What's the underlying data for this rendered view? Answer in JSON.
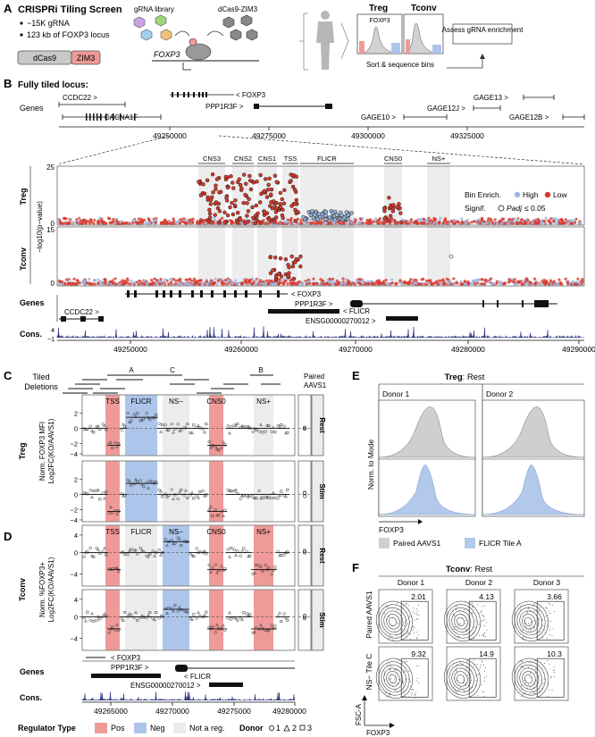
{
  "panelA": {
    "letter": "A",
    "title": "CRISPRi Tiling Screen",
    "bullets": [
      "~15K gRNA",
      "123 kb of FOXP3 locus"
    ],
    "dcas9": "dCas9",
    "zim3": "ZIM3",
    "library_label": "gRNA library",
    "effector_label": "dCas9-ZIM3",
    "gene_label": "FOXP3",
    "treg": "Treg",
    "tconv": "Tconv",
    "foxp3_inset": "FOXP3",
    "sort_label": "Sort & sequence bins",
    "assess_label": "Assess gRNA enrichment"
  },
  "panelB": {
    "letter": "B",
    "title": "Fully tiled locus:",
    "genes_label": "Genes",
    "top_genes": [
      "CCDC22 >",
      "< FOXP3",
      "PPP1R3F >",
      "< CACNA1F",
      "GAGE13 >",
      "GAGE12J >",
      "GAGE10 >",
      "GAGE12B >"
    ],
    "top_ticks": [
      "49250000",
      "49275000",
      "49300000",
      "49325000"
    ],
    "regions": [
      "CNS3",
      "CNS2",
      "CNS1",
      "TSS",
      "FLICR",
      "CNS0",
      "NS+"
    ],
    "legend": {
      "bin_enrich": "Bin Enrich.",
      "high": "High",
      "low": "Low",
      "signif": "Signif.",
      "padj": "Padj",
      "cutoff": "≤ 0.05"
    },
    "treg_label": "Treg",
    "tconv_label": "Tconv",
    "ylabel": "−log10(p−value)",
    "y_ticks_treg": [
      "25",
      "0"
    ],
    "y_ticks_tconv": [
      "15",
      "0"
    ],
    "bottom_genes": [
      "< FOXP3",
      "PPP1R3F >",
      "< FLICR",
      "CCDC22 >",
      "ENSG00000270012 >"
    ],
    "cons_label": "Cons.",
    "cons_ticks": [
      "4",
      "−1"
    ],
    "bottom_ticks": [
      "49250000",
      "49260000",
      "49270000",
      "49280000",
      "49290000"
    ],
    "colors": {
      "high": "#9db9e3",
      "low": "#d8392b"
    }
  },
  "panelC": {
    "letter": "C",
    "tiled_label": "Tiled",
    "deletions_label": "Deletions",
    "del_letters": [
      "A",
      "C",
      "B"
    ],
    "paired_label": "Paired AAVS1",
    "regions": [
      "TSS",
      "FLICR",
      "NS−",
      "CNS0",
      "NS+"
    ],
    "group_label": "Treg",
    "ylabel1": "Norm. FOXP3 MFI",
    "ylabel2": "Log2FC(KO/AAVS1)",
    "yticks": [
      "2",
      "0",
      "−2",
      "−4"
    ],
    "rest": "Rest",
    "stim": "Stim"
  },
  "panelD": {
    "letter": "D",
    "regions": [
      "TSS",
      "FLICR",
      "NS−",
      "CNS0",
      "NS+"
    ],
    "group_label": "Tconv",
    "ylabel1": "Norm. %FOXP3+",
    "ylabel2": "Log2FC(KO/AAVS1)",
    "yticks": [
      "4",
      "0",
      "−4"
    ],
    "rest": "Rest",
    "stim": "Stim",
    "genes_label": "Genes",
    "genes": [
      "< FOXP3",
      "PPP1R3F >",
      "< FLICR",
      "ENSG00000270012 >"
    ],
    "cons_label": "Cons.",
    "xticks": [
      "49265000",
      "49270000",
      "49275000",
      "49280000"
    ]
  },
  "legendBottom": {
    "regulator_title": "Regulator Type",
    "pos": "Pos",
    "neg": "Neg",
    "notreg": "Not a reg.",
    "donor_title": "Donor",
    "donors": [
      "1",
      "2",
      "3"
    ],
    "colors": {
      "pos": "#ef9a98",
      "neg": "#adc5ea",
      "notreg": "#ececec"
    }
  },
  "panelE": {
    "letter": "E",
    "title_bold": "Treg",
    "title_rest": ": Rest",
    "donors": [
      "Donor 1",
      "Donor 2"
    ],
    "ylabel": "Norm. to Mode",
    "xlabel": "FOXP3",
    "legend": [
      "Paired AAVS1",
      "FLICR Tile A"
    ],
    "colors": {
      "aavs1": "#cfcfcf",
      "flicr": "#b2c9ec"
    }
  },
  "panelF": {
    "letter": "F",
    "title_bold": "Tconv",
    "title_rest": ": Rest",
    "donors": [
      "Donor 1",
      "Donor 2",
      "Donor 3"
    ],
    "row_labels": [
      "Paired AAVS1",
      "NS− Tile C"
    ],
    "values_row1": [
      "2.01",
      "4.13",
      "3.66"
    ],
    "values_row2": [
      "9.32",
      "14.9",
      "10.3"
    ],
    "ylabel": "FSC-A",
    "xlabel": "FOXP3"
  }
}
